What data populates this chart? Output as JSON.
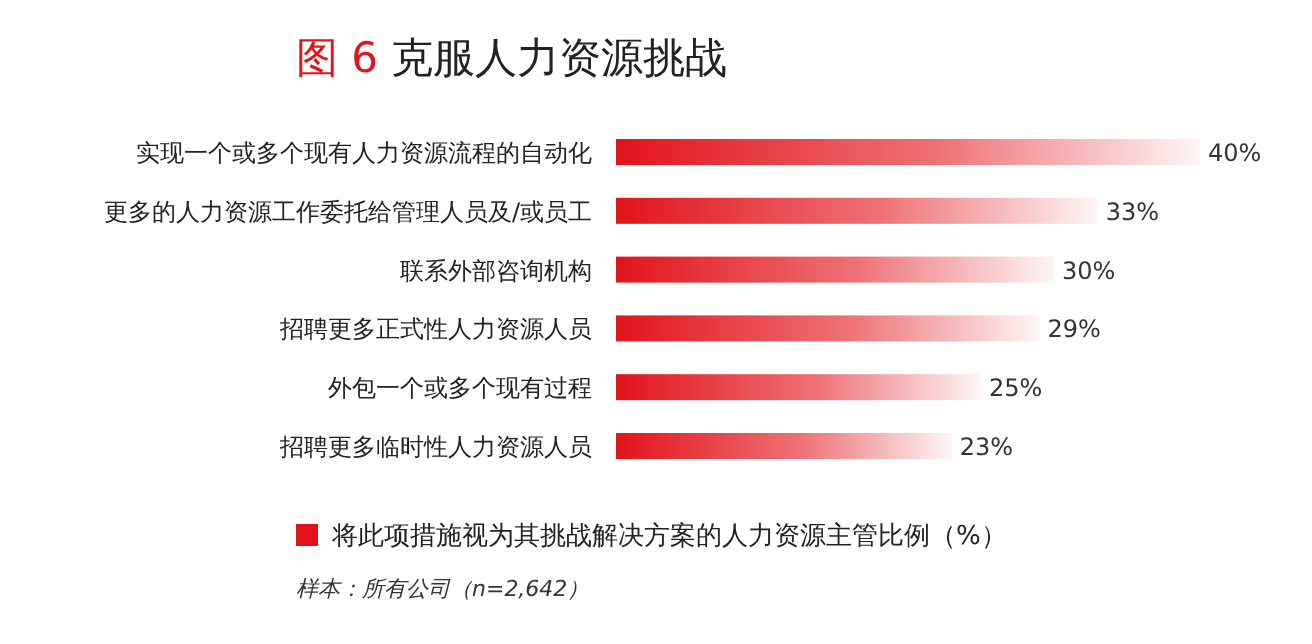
{
  "chart_data": {
    "type": "bar",
    "orientation": "horizontal",
    "title": "图 6  克服人力资源挑战",
    "categories": [
      "实现一个或多个现有人力资源流程的自动化",
      "更多的人力资源工作委托给管理人员及/或员工",
      "联系外部咨询机构",
      "招聘更多正式性人力资源人员",
      "外包一个或多个现有过程",
      "招聘更多临时性人力资源人员"
    ],
    "series": [
      {
        "name": "将此项措施视为其挑战解决方案的人力资源主管比例（%）",
        "color": "#e2131b",
        "values": [
          40,
          33,
          30,
          29,
          25,
          23
        ],
        "value_labels": [
          "40%",
          "33%",
          "30%",
          "29%",
          "25%",
          "23%"
        ]
      }
    ],
    "legend": "bottom",
    "annotations": [
      "样本：所有公司（n=2,642）"
    ]
  }
}
